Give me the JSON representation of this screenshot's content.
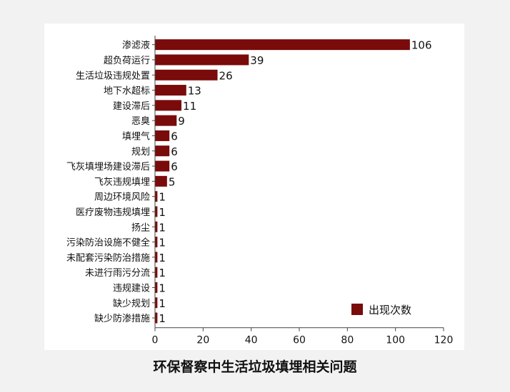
{
  "caption": "环保督察中生活垃圾填埋相关问题",
  "colors": {
    "bar": "#7a0b0b",
    "axis": "#444444",
    "text": "#111111"
  },
  "chart_data": {
    "type": "bar",
    "orientation": "horizontal",
    "categories": [
      "渗滤液",
      "超负荷运行",
      "生活垃圾违规处置",
      "地下水超标",
      "建设滞后",
      "恶臭",
      "填埋气",
      "规划",
      "飞灰填埋场建设滞后",
      "飞灰违规填埋",
      "周边环境风险",
      "医疗废物违规填埋",
      "扬尘",
      "污染防治设施不健全",
      "未配套污染防治措施",
      "未进行雨污分流",
      "违规建设",
      "缺少规划",
      "缺少防渗措施"
    ],
    "series": [
      {
        "name": "出现次数",
        "values": [
          106,
          39,
          26,
          13,
          11,
          9,
          6,
          6,
          6,
          5,
          1,
          1,
          1,
          1,
          1,
          1,
          1,
          1,
          1
        ]
      }
    ],
    "xlim": [
      0,
      120
    ],
    "xticks": [
      0,
      20,
      40,
      60,
      80,
      100,
      120
    ],
    "legend_position": "bottom-right",
    "grid": false
  }
}
